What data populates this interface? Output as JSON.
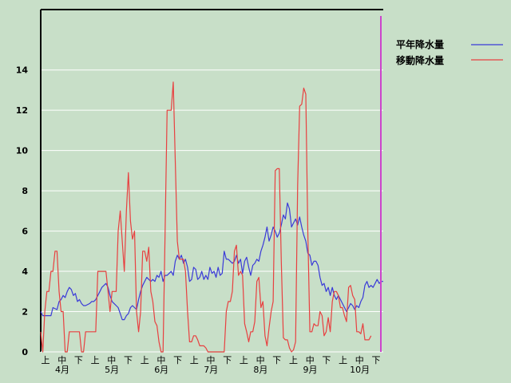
{
  "chart_data": {
    "type": "line",
    "ylim": [
      0,
      17
    ],
    "yticks": [
      0,
      2,
      4,
      6,
      8,
      10,
      12,
      14
    ],
    "grid": true,
    "legend_position": "right",
    "x_period_labels": [
      "上",
      "中",
      "下",
      "上",
      "中",
      "下",
      "上",
      "中",
      "下",
      "上",
      "中",
      "下",
      "上",
      "中",
      "下",
      "上",
      "中",
      "下",
      "上",
      "中",
      "下"
    ],
    "x_month_labels": [
      "4月",
      "5月",
      "6月",
      "7月",
      "8月",
      "9月",
      "10月"
    ],
    "colors": {
      "normal": "#3a3ad8",
      "moving": "#e84040",
      "current_marker": "#cc44cc",
      "background": "#c8dfc8",
      "grid": "#ffffff"
    },
    "series": [
      {
        "name": "平年降水量",
        "color": "#3a3ad8",
        "points": [
          [
            0,
            2.0
          ],
          [
            1,
            1.8
          ],
          [
            3,
            1.8
          ],
          [
            5,
            1.8
          ],
          [
            6,
            2.2
          ],
          [
            8,
            2.1
          ],
          [
            9,
            2.5
          ],
          [
            10,
            2.6
          ],
          [
            11,
            2.8
          ],
          [
            12,
            2.7
          ],
          [
            13,
            3.0
          ],
          [
            14,
            3.2
          ],
          [
            15,
            3.1
          ],
          [
            16,
            2.8
          ],
          [
            17,
            2.9
          ],
          [
            18,
            2.5
          ],
          [
            19,
            2.6
          ],
          [
            20,
            2.4
          ],
          [
            21,
            2.3
          ],
          [
            22,
            2.3
          ],
          [
            24,
            2.4
          ],
          [
            25,
            2.5
          ],
          [
            26,
            2.5
          ],
          [
            27,
            2.6
          ],
          [
            28,
            2.8
          ],
          [
            29,
            3.0
          ],
          [
            30,
            3.2
          ],
          [
            31,
            3.3
          ],
          [
            32,
            3.4
          ],
          [
            33,
            3.2
          ],
          [
            34,
            2.8
          ],
          [
            35,
            2.5
          ],
          [
            36,
            2.4
          ],
          [
            37,
            2.3
          ],
          [
            38,
            2.2
          ],
          [
            39,
            1.9
          ],
          [
            40,
            1.6
          ],
          [
            41,
            1.6
          ],
          [
            42,
            1.8
          ],
          [
            43,
            1.9
          ],
          [
            44,
            2.2
          ],
          [
            45,
            2.3
          ],
          [
            46,
            2.2
          ],
          [
            47,
            2.1
          ],
          [
            48,
            2.6
          ],
          [
            49,
            3.0
          ],
          [
            50,
            3.3
          ],
          [
            51,
            3.5
          ],
          [
            52,
            3.7
          ],
          [
            53,
            3.6
          ],
          [
            54,
            3.5
          ],
          [
            55,
            3.6
          ],
          [
            56,
            3.5
          ],
          [
            57,
            3.8
          ],
          [
            58,
            3.7
          ],
          [
            59,
            4.0
          ],
          [
            60,
            3.5
          ],
          [
            61,
            3.8
          ],
          [
            62,
            3.8
          ],
          [
            63,
            3.9
          ],
          [
            64,
            4.0
          ],
          [
            65,
            3.8
          ],
          [
            66,
            4.5
          ],
          [
            67,
            4.8
          ],
          [
            68,
            4.6
          ],
          [
            69,
            4.8
          ],
          [
            70,
            4.4
          ],
          [
            71,
            4.6
          ],
          [
            72,
            4.2
          ],
          [
            73,
            3.5
          ],
          [
            74,
            3.6
          ],
          [
            75,
            4.2
          ],
          [
            76,
            4.1
          ],
          [
            77,
            3.6
          ],
          [
            78,
            3.7
          ],
          [
            79,
            4.0
          ],
          [
            80,
            3.6
          ],
          [
            81,
            3.8
          ],
          [
            82,
            3.6
          ],
          [
            83,
            4.2
          ],
          [
            84,
            3.9
          ],
          [
            85,
            4.0
          ],
          [
            86,
            3.7
          ],
          [
            87,
            4.2
          ],
          [
            88,
            3.8
          ],
          [
            89,
            3.9
          ],
          [
            90,
            5.0
          ],
          [
            91,
            4.6
          ],
          [
            92,
            4.6
          ],
          [
            93,
            4.5
          ],
          [
            94,
            4.4
          ],
          [
            95,
            4.5
          ],
          [
            96,
            4.8
          ],
          [
            97,
            4.4
          ],
          [
            98,
            4.6
          ],
          [
            99,
            3.9
          ],
          [
            100,
            4.5
          ],
          [
            101,
            4.7
          ],
          [
            102,
            4.2
          ],
          [
            103,
            3.8
          ],
          [
            104,
            4.3
          ],
          [
            105,
            4.4
          ],
          [
            106,
            4.6
          ],
          [
            107,
            4.5
          ],
          [
            108,
            5.0
          ],
          [
            109,
            5.3
          ],
          [
            110,
            5.7
          ],
          [
            111,
            6.2
          ],
          [
            112,
            5.5
          ],
          [
            113,
            5.8
          ],
          [
            114,
            6.2
          ],
          [
            115,
            6.0
          ],
          [
            116,
            5.7
          ],
          [
            117,
            5.9
          ],
          [
            118,
            6.3
          ],
          [
            119,
            6.8
          ],
          [
            120,
            6.6
          ],
          [
            121,
            7.4
          ],
          [
            122,
            7.1
          ],
          [
            123,
            6.2
          ],
          [
            124,
            6.4
          ],
          [
            125,
            6.6
          ],
          [
            126,
            6.3
          ],
          [
            127,
            6.7
          ],
          [
            128,
            6.2
          ],
          [
            129,
            5.8
          ],
          [
            130,
            5.5
          ],
          [
            131,
            4.9
          ],
          [
            132,
            4.8
          ],
          [
            133,
            4.3
          ],
          [
            134,
            4.5
          ],
          [
            135,
            4.5
          ],
          [
            136,
            4.3
          ],
          [
            137,
            3.7
          ],
          [
            138,
            3.3
          ],
          [
            139,
            3.4
          ],
          [
            140,
            3.0
          ],
          [
            141,
            3.2
          ],
          [
            142,
            2.8
          ],
          [
            143,
            3.2
          ],
          [
            144,
            2.8
          ],
          [
            145,
            2.6
          ],
          [
            146,
            2.8
          ],
          [
            147,
            2.6
          ],
          [
            148,
            2.4
          ],
          [
            149,
            2.2
          ],
          [
            150,
            2.0
          ],
          [
            151,
            2.2
          ],
          [
            152,
            2.4
          ],
          [
            153,
            2.3
          ],
          [
            154,
            2.1
          ],
          [
            155,
            2.3
          ],
          [
            156,
            2.2
          ],
          [
            157,
            2.5
          ],
          [
            158,
            2.7
          ],
          [
            159,
            3.3
          ],
          [
            160,
            3.5
          ],
          [
            161,
            3.2
          ],
          [
            162,
            3.3
          ],
          [
            163,
            3.2
          ],
          [
            164,
            3.4
          ],
          [
            165,
            3.6
          ],
          [
            166,
            3.4
          ],
          [
            167,
            3.5
          ],
          [
            168,
            3.5
          ]
        ]
      },
      {
        "name": "移動降水量",
        "color": "#e84040",
        "points": [
          [
            0,
            1.0
          ],
          [
            1,
            0.0
          ],
          [
            2,
            2.0
          ],
          [
            3,
            3.0
          ],
          [
            4,
            3.0
          ],
          [
            5,
            4.0
          ],
          [
            6,
            4.0
          ],
          [
            7,
            5.0
          ],
          [
            8,
            5.0
          ],
          [
            9,
            3.0
          ],
          [
            10,
            2.0
          ],
          [
            11,
            2.0
          ],
          [
            12,
            0.0
          ],
          [
            13,
            0.0
          ],
          [
            14,
            1.0
          ],
          [
            15,
            1.0
          ],
          [
            16,
            1.0
          ],
          [
            17,
            1.0
          ],
          [
            18,
            1.0
          ],
          [
            19,
            1.0
          ],
          [
            20,
            0.0
          ],
          [
            21,
            0.0
          ],
          [
            22,
            1.0
          ],
          [
            23,
            1.0
          ],
          [
            24,
            1.0
          ],
          [
            25,
            1.0
          ],
          [
            26,
            1.0
          ],
          [
            27,
            1.0
          ],
          [
            28,
            4.0
          ],
          [
            29,
            4.0
          ],
          [
            30,
            4.0
          ],
          [
            31,
            4.0
          ],
          [
            32,
            4.0
          ],
          [
            33,
            3.0
          ],
          [
            34,
            2.0
          ],
          [
            35,
            3.0
          ],
          [
            36,
            3.0
          ],
          [
            37,
            3.0
          ],
          [
            38,
            6.0
          ],
          [
            39,
            7.0
          ],
          [
            40,
            5.5
          ],
          [
            41,
            4.0
          ],
          [
            42,
            7.0
          ],
          [
            43,
            8.9
          ],
          [
            44,
            6.5
          ],
          [
            45,
            5.6
          ],
          [
            46,
            6.0
          ],
          [
            47,
            2.0
          ],
          [
            48,
            1.0
          ],
          [
            49,
            2.0
          ],
          [
            50,
            5.0
          ],
          [
            51,
            5.0
          ],
          [
            52,
            4.5
          ],
          [
            53,
            5.2
          ],
          [
            54,
            3.0
          ],
          [
            55,
            2.5
          ],
          [
            56,
            1.5
          ],
          [
            57,
            1.3
          ],
          [
            58,
            0.5
          ],
          [
            59,
            0.0
          ],
          [
            60,
            0.0
          ],
          [
            61,
            6.0
          ],
          [
            62,
            12.0
          ],
          [
            63,
            12.0
          ],
          [
            64,
            12.0
          ],
          [
            65,
            13.4
          ],
          [
            66,
            9.5
          ],
          [
            67,
            5.5
          ],
          [
            68,
            4.6
          ],
          [
            69,
            4.6
          ],
          [
            70,
            4.6
          ],
          [
            71,
            4.0
          ],
          [
            72,
            2.0
          ],
          [
            73,
            0.5
          ],
          [
            74,
            0.5
          ],
          [
            75,
            0.8
          ],
          [
            76,
            0.8
          ],
          [
            77,
            0.6
          ],
          [
            78,
            0.3
          ],
          [
            79,
            0.3
          ],
          [
            80,
            0.3
          ],
          [
            81,
            0.2
          ],
          [
            82,
            0.0
          ],
          [
            83,
            0.0
          ],
          [
            84,
            0.0
          ],
          [
            85,
            0.0
          ],
          [
            86,
            0.0
          ],
          [
            87,
            0.0
          ],
          [
            88,
            0.0
          ],
          [
            89,
            0.0
          ],
          [
            90,
            0.0
          ],
          [
            91,
            2.0
          ],
          [
            92,
            2.5
          ],
          [
            93,
            2.5
          ],
          [
            94,
            3.0
          ],
          [
            95,
            5.0
          ],
          [
            96,
            5.3
          ],
          [
            97,
            3.8
          ],
          [
            98,
            4.0
          ],
          [
            99,
            3.8
          ],
          [
            100,
            1.4
          ],
          [
            101,
            1.0
          ],
          [
            102,
            0.5
          ],
          [
            103,
            1.0
          ],
          [
            104,
            1.0
          ],
          [
            105,
            1.5
          ],
          [
            106,
            3.5
          ],
          [
            107,
            3.7
          ],
          [
            108,
            2.2
          ],
          [
            109,
            2.5
          ],
          [
            110,
            0.8
          ],
          [
            111,
            0.3
          ],
          [
            112,
            1.2
          ],
          [
            113,
            2.0
          ],
          [
            114,
            2.5
          ],
          [
            115,
            9.0
          ],
          [
            116,
            9.1
          ],
          [
            117,
            9.1
          ],
          [
            118,
            4.5
          ],
          [
            119,
            0.7
          ],
          [
            120,
            0.6
          ],
          [
            121,
            0.6
          ],
          [
            122,
            0.2
          ],
          [
            123,
            0.0
          ],
          [
            124,
            0.1
          ],
          [
            125,
            0.5
          ],
          [
            126,
            8.3
          ],
          [
            127,
            12.2
          ],
          [
            128,
            12.3
          ],
          [
            129,
            13.1
          ],
          [
            130,
            12.8
          ],
          [
            131,
            6.0
          ],
          [
            132,
            1.0
          ],
          [
            133,
            1.0
          ],
          [
            134,
            1.4
          ],
          [
            135,
            1.3
          ],
          [
            136,
            1.3
          ],
          [
            137,
            2.0
          ],
          [
            138,
            1.8
          ],
          [
            139,
            0.8
          ],
          [
            140,
            1.0
          ],
          [
            141,
            1.7
          ],
          [
            142,
            1.0
          ],
          [
            143,
            2.5
          ],
          [
            144,
            3.0
          ],
          [
            145,
            3.0
          ],
          [
            146,
            2.8
          ],
          [
            147,
            2.2
          ],
          [
            148,
            2.2
          ],
          [
            149,
            1.8
          ],
          [
            150,
            1.5
          ],
          [
            151,
            3.2
          ],
          [
            152,
            3.3
          ],
          [
            153,
            2.8
          ],
          [
            154,
            2.6
          ],
          [
            155,
            1.0
          ],
          [
            156,
            1.0
          ],
          [
            157,
            0.9
          ],
          [
            158,
            1.4
          ],
          [
            159,
            0.6
          ],
          [
            160,
            0.6
          ],
          [
            161,
            0.6
          ],
          [
            162,
            0.8
          ]
        ]
      }
    ]
  }
}
